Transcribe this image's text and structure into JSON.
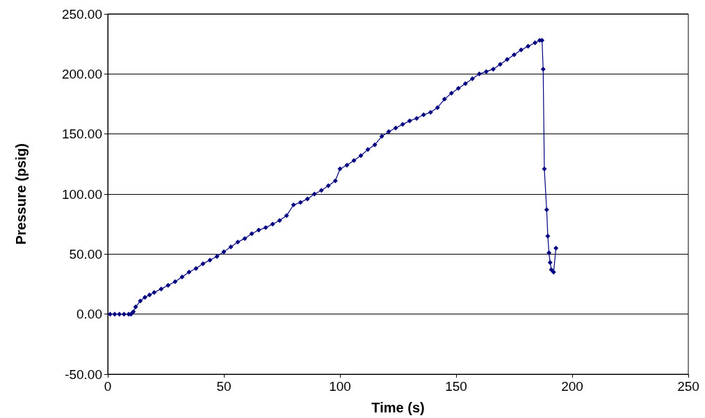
{
  "chart_data": {
    "type": "line",
    "xlabel": "Time (s)",
    "ylabel": "Pressure (psig)",
    "xlim": [
      0,
      250
    ],
    "xticks": [
      0,
      50,
      100,
      150,
      200,
      250
    ],
    "ylim": [
      -50,
      250
    ],
    "yticks": [
      {
        "value": -50,
        "label": "-50.00"
      },
      {
        "value": 0,
        "label": "0.00"
      },
      {
        "value": 50,
        "label": "50.00"
      },
      {
        "value": 100,
        "label": "100.00"
      },
      {
        "value": 150,
        "label": "150.00"
      },
      {
        "value": 200,
        "label": "200.00"
      },
      {
        "value": 250,
        "label": "250.00"
      }
    ],
    "grid": "y",
    "legend": false,
    "marker": "diamond",
    "line_style": "solid",
    "series": [
      {
        "color": "#000080",
        "x": [
          1,
          3,
          5,
          7,
          9,
          10,
          11,
          12,
          14,
          16,
          18,
          20,
          23,
          26,
          29,
          32,
          35,
          38,
          41,
          44,
          47,
          50,
          53,
          56,
          59,
          62,
          65,
          68,
          71,
          74,
          77,
          80,
          83,
          86,
          89,
          92,
          95,
          98,
          100,
          103,
          106,
          109,
          112,
          115,
          118,
          121,
          124,
          127,
          130,
          133,
          136,
          139,
          142,
          145,
          148,
          151,
          154,
          157,
          160,
          163,
          166,
          169,
          172,
          175,
          178,
          181,
          184,
          186,
          187,
          187.5,
          188,
          189,
          189.5,
          190,
          190.5,
          191,
          192,
          193
        ],
        "values": [
          0,
          0,
          0,
          0,
          0,
          0,
          2,
          6,
          11,
          14,
          16,
          18,
          21,
          24,
          27,
          31,
          35,
          38,
          42,
          45,
          48,
          52,
          56,
          60,
          63,
          67,
          70,
          72,
          75,
          78,
          82,
          91,
          93,
          96,
          100,
          103,
          107,
          111,
          121,
          124,
          128,
          132,
          137,
          141,
          148,
          152,
          155,
          158,
          161,
          163,
          166,
          168,
          172,
          179,
          184,
          188,
          192,
          196,
          200,
          202,
          204,
          208,
          212,
          216,
          220,
          223,
          226,
          228,
          228,
          204,
          121,
          87,
          65,
          51,
          43,
          37,
          35,
          55
        ]
      }
    ]
  }
}
